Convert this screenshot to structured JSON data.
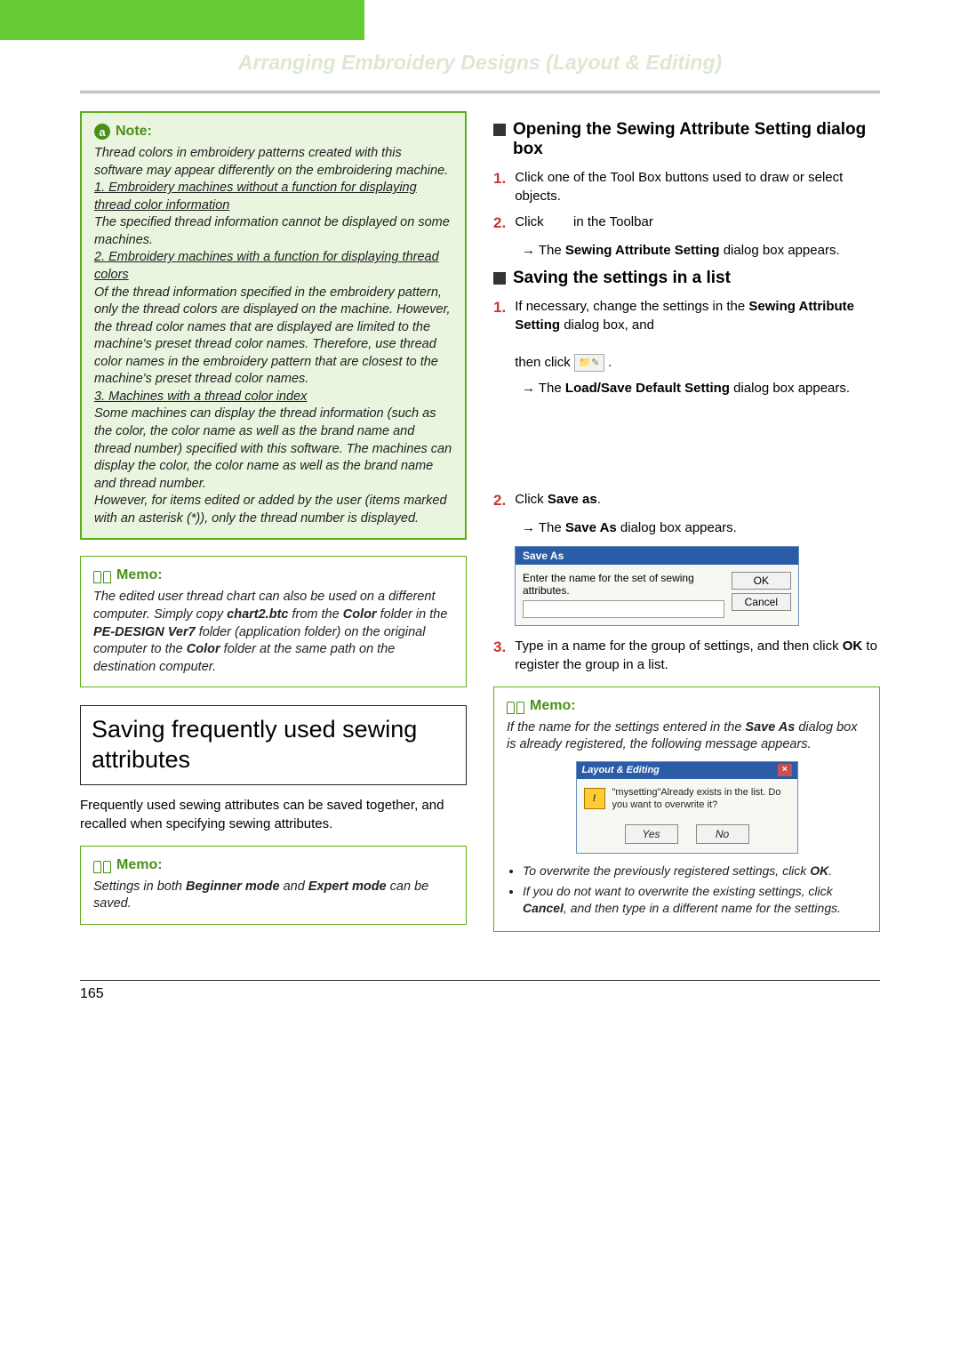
{
  "page": {
    "title": "Arranging Embroidery Designs (Layout & Editing)",
    "number": "165"
  },
  "note": {
    "label": "Note:",
    "intro": "Thread colors in embroidery patterns created with this software may appear differently on the embroidering machine.",
    "item1_heading": "1. Embroidery machines without a function for displaying thread color information",
    "item1_body": "The specified thread information cannot be displayed on some machines.",
    "item2_heading": "2. Embroidery machines with a function for displaying thread colors",
    "item2_body": "Of the thread information specified in the embroidery pattern, only the thread colors are displayed on the machine. However, the thread color names that are displayed are limited to the machine's preset thread color names. Therefore, use thread color names in the embroidery pattern that are closest to the machine's preset thread color names.",
    "item3_heading": "3. Machines with a thread color index",
    "item3_body": "Some machines can display the thread information (such as the color, the color name as well as the brand name and thread number) specified with this software. The machines can display the color, the color name as well as the brand name and thread number.",
    "item3_body2": "However, for items edited or added by the user (items marked with an asterisk (*)), only the thread number is displayed."
  },
  "memo1": {
    "label": "Memo:",
    "text_a": "The edited user thread chart can also be used on a different computer. Simply copy ",
    "text_b": "chart2.btc",
    "text_c": " from the ",
    "text_d": "Color",
    "text_e": " folder in the ",
    "text_f": "PE-DESIGN Ver7",
    "text_g": " folder (application folder) on the original computer to the ",
    "text_h": "Color",
    "text_i": " folder at the same path on the destination computer."
  },
  "section1": {
    "heading": "Saving frequently used sewing attributes",
    "para": "Frequently used sewing attributes can be saved together, and recalled when specifying sewing attributes."
  },
  "memo2": {
    "label": "Memo:",
    "text_a": "Settings in both ",
    "text_b": "Beginner mode",
    "text_c": " and ",
    "text_d": "Expert mode",
    "text_e": " can be saved."
  },
  "sub1": {
    "heading": "Opening the Sewing Attribute Setting dialog box",
    "step1": "Click one of the Tool Box buttons used to draw or select objects.",
    "step2_a": "Click",
    "step2_b": "in the Toolbar",
    "result_a": "→ The ",
    "result_b": "Sewing Attribute Setting",
    "result_c": " dialog box appears."
  },
  "sub2": {
    "heading": "Saving the settings in a list",
    "step1_a": "If necessary, change the settings in the ",
    "step1_b": "Sewing Attribute Setting",
    "step1_c": " dialog box, and",
    "step1_d": "then click ",
    "step1_e": " .",
    "result1_a": "→ The ",
    "result1_b": "Load/Save Default Setting",
    "result1_c": " dialog box appears.",
    "step2_a": "Click ",
    "step2_b": "Save as",
    "step2_c": ".",
    "result2_a": "→ The ",
    "result2_b": "Save As",
    "result2_c": " dialog box appears.",
    "step3_a": "Type in a name for the group of settings, and then click ",
    "step3_b": "OK",
    "step3_c": " to register the group in a list."
  },
  "saveas": {
    "title": "Save As",
    "label": "Enter the name for the set of sewing attributes.",
    "ok": "OK",
    "cancel": "Cancel"
  },
  "memo3": {
    "label": "Memo:",
    "text_a": "If the name for the settings entered in the ",
    "text_b": "Save As",
    "text_c": " dialog box is already registered, the following message appears.",
    "msg_title": "Layout & Editing",
    "msg_body": "\"mysetting\"Already exists in the list. Do you want to overwrite it?",
    "yes": "Yes",
    "no": "No",
    "bullet1_a": "To overwrite the previously registered settings, click ",
    "bullet1_b": "OK",
    "bullet1_c": ".",
    "bullet2_a": "If you do not want to overwrite the existing settings, click ",
    "bullet2_b": "Cancel",
    "bullet2_c": ", and then type in a different name for the settings."
  },
  "nums": {
    "n1": "1.",
    "n2": "2.",
    "n3": "3."
  },
  "close_x": "×",
  "icon_label": "📁✎"
}
